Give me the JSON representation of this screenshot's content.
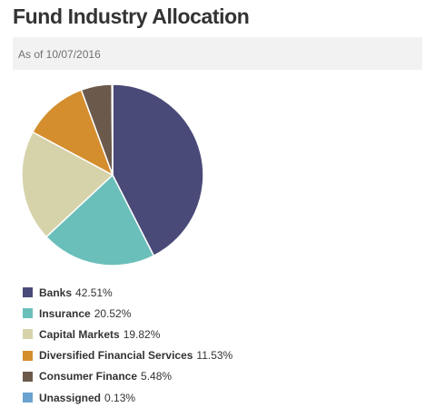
{
  "header": {
    "title": "Fund Industry Allocation",
    "as_of": "As of 10/07/2016"
  },
  "chart_data": {
    "type": "pie",
    "title": "Fund Industry Allocation",
    "subtitle": "As of 10/07/2016",
    "legend_position": "bottom",
    "slices": [
      {
        "name": "Banks",
        "value": 42.51,
        "label": "42.51%",
        "color": "#4a4a78"
      },
      {
        "name": "Insurance",
        "value": 20.52,
        "label": "20.52%",
        "color": "#6bbfba"
      },
      {
        "name": "Capital Markets",
        "value": 19.82,
        "label": "19.82%",
        "color": "#d6d3ab"
      },
      {
        "name": "Diversified Financial Services",
        "value": 11.53,
        "label": "11.53%",
        "color": "#d48e2e"
      },
      {
        "name": "Consumer Finance",
        "value": 5.48,
        "label": "5.48%",
        "color": "#6b5a4c"
      },
      {
        "name": "Unassigned",
        "value": 0.13,
        "label": "0.13%",
        "color": "#6aa3cf"
      }
    ]
  }
}
